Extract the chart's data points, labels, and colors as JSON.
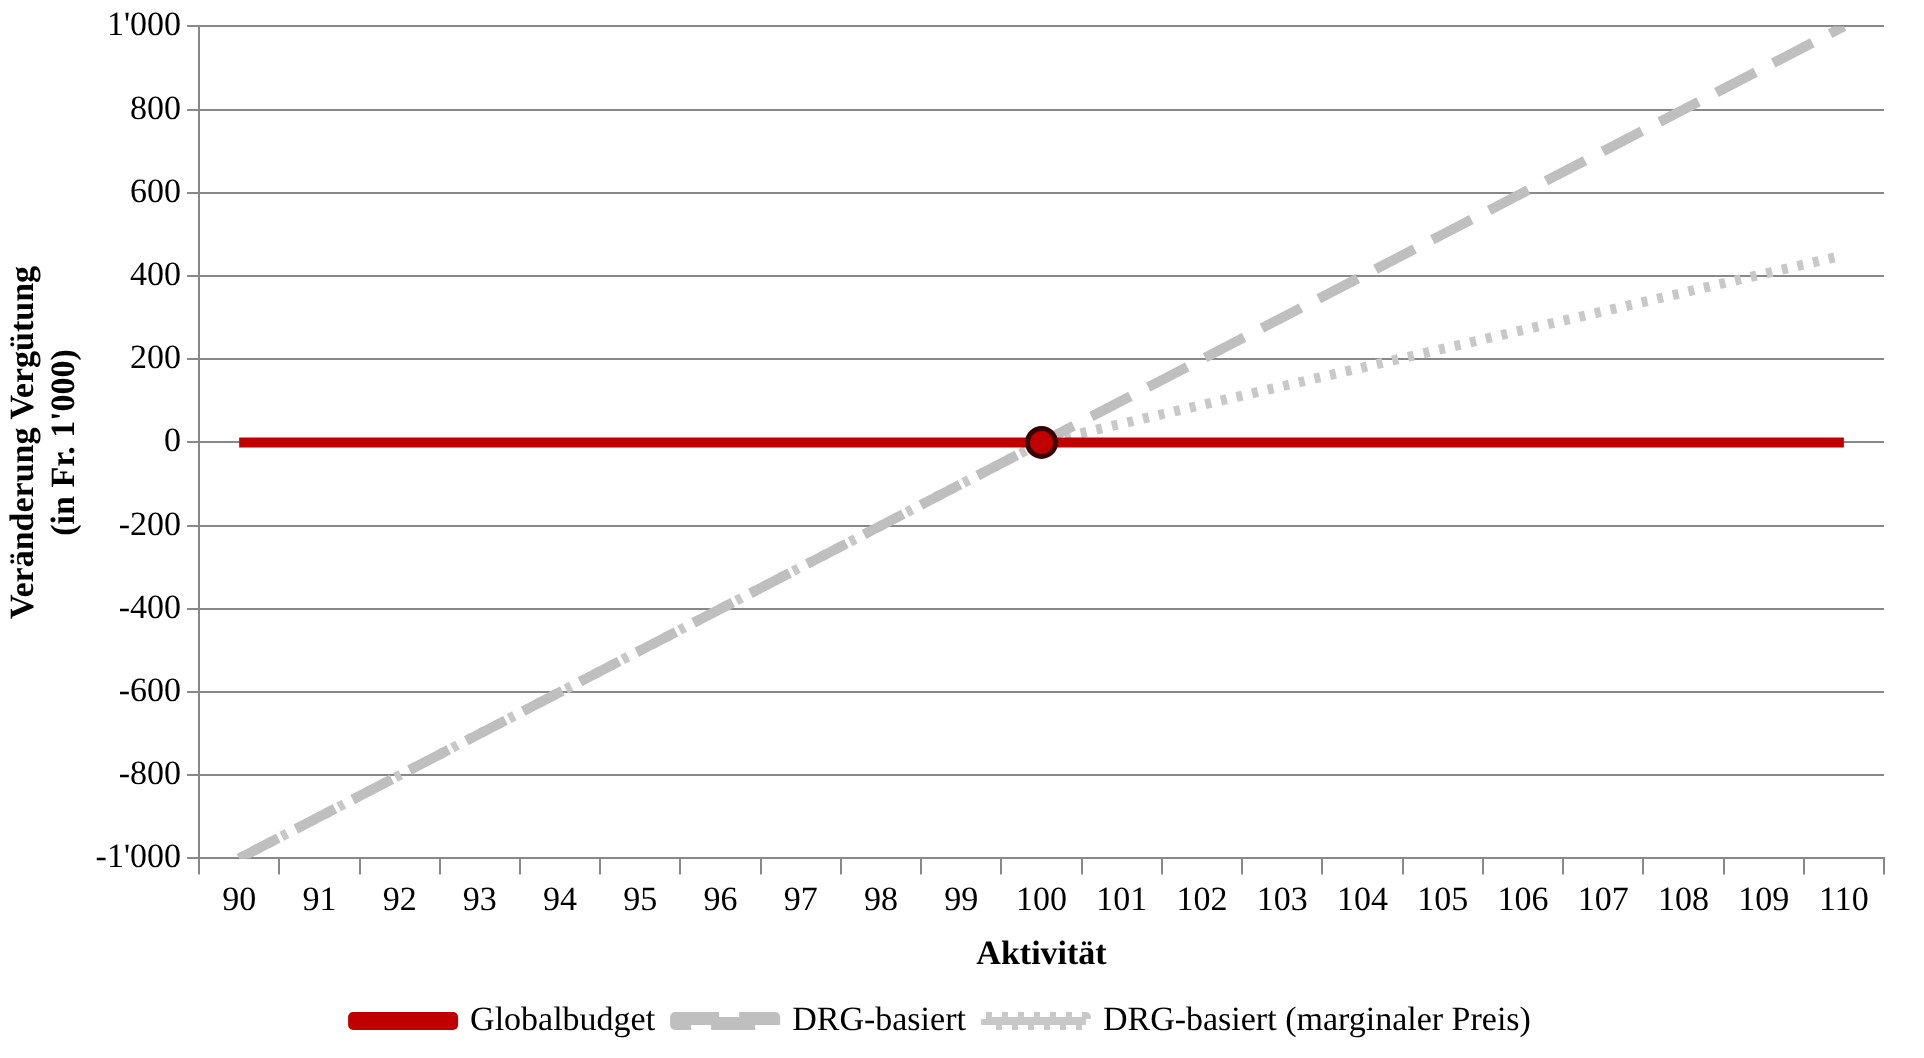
{
  "chart_data": {
    "type": "line",
    "xlabel": "Aktivität",
    "ylabel": "Veränderung Vergütung\n(in Fr. 1'000)",
    "categories": [
      "90",
      "91",
      "92",
      "93",
      "94",
      "95",
      "96",
      "97",
      "98",
      "99",
      "100",
      "101",
      "102",
      "103",
      "104",
      "105",
      "106",
      "107",
      "108",
      "109",
      "110"
    ],
    "series": [
      {
        "name": "Globalbudget",
        "color": "#c00000",
        "line_style": "solid",
        "values": [
          0,
          0,
          0,
          0,
          0,
          0,
          0,
          0,
          0,
          0,
          0,
          0,
          0,
          0,
          0,
          0,
          0,
          0,
          0,
          0,
          0
        ]
      },
      {
        "name": "DRG-basiert",
        "color": "#bfbfbf",
        "line_style": "dashed",
        "values": [
          -1000,
          -900,
          -800,
          -700,
          -600,
          -500,
          -400,
          -300,
          -200,
          -100,
          0,
          100,
          200,
          300,
          400,
          500,
          600,
          700,
          800,
          900,
          1000
        ]
      },
      {
        "name": "DRG-basiert (marginaler Preis)",
        "color": "#c8c8c8",
        "line_style": "dotted",
        "values": [
          -1000,
          -900,
          -800,
          -700,
          -600,
          -500,
          -400,
          -300,
          -200,
          -100,
          0,
          45,
          90,
          135,
          180,
          225,
          270,
          315,
          360,
          405,
          450
        ]
      },
      {
        "type": "scatter",
        "color": "#c00000",
        "marker": "circle",
        "x": [
          "100"
        ],
        "values": [
          0
        ]
      }
    ],
    "ylim": [
      -1000,
      1000
    ],
    "yticks": [
      {
        "value": -1000,
        "label": "-1'000"
      },
      -800,
      -600,
      -400,
      -200,
      0,
      200,
      400,
      600,
      800,
      {
        "value": 1000,
        "label": "1'000"
      }
    ],
    "grid": "y",
    "legend": "bottom",
    "marker": "none"
  }
}
